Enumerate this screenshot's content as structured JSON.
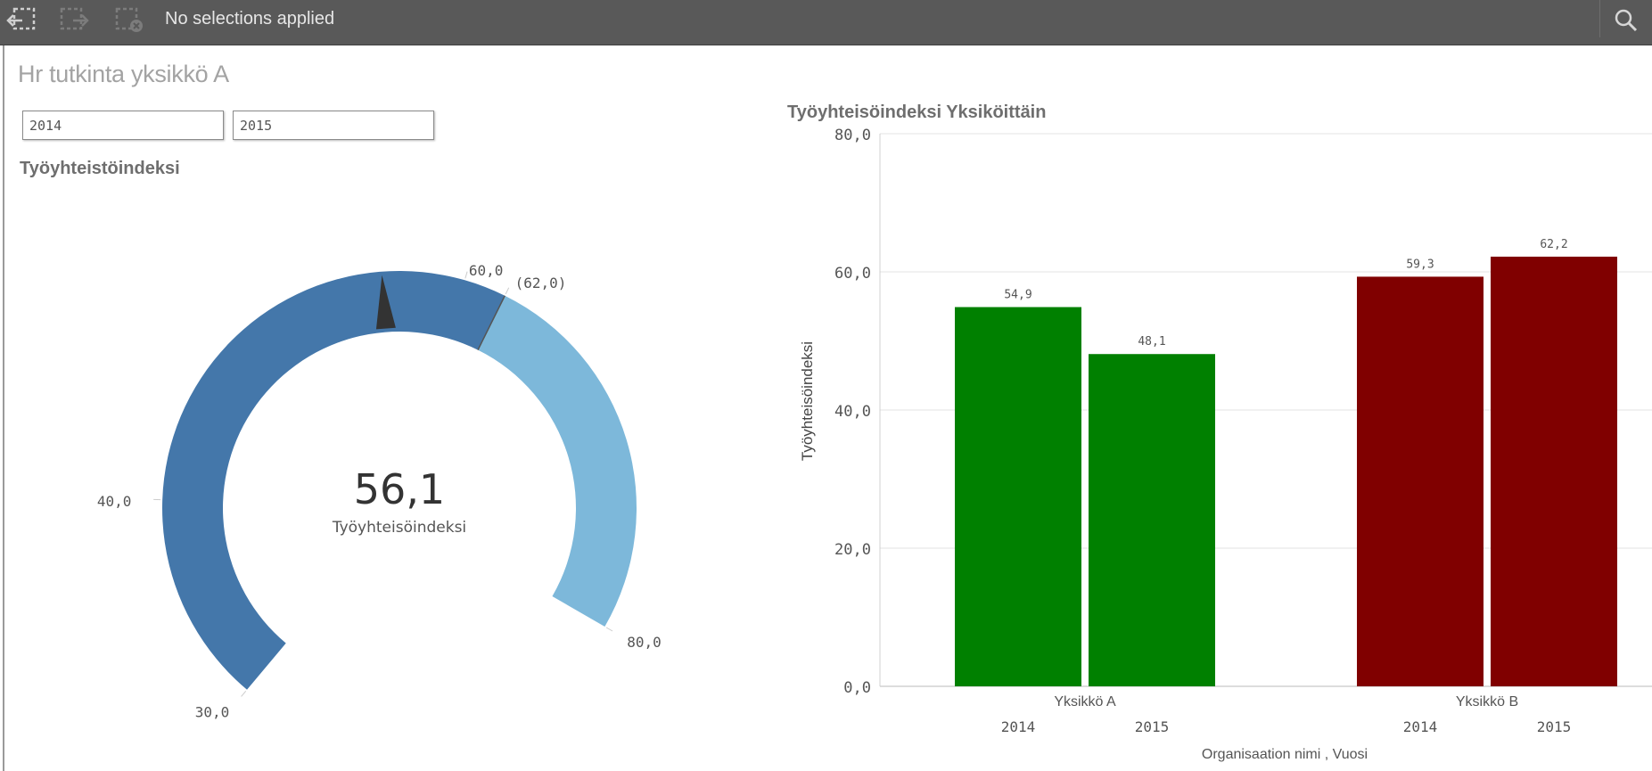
{
  "toolbar": {
    "selection_status": "No selections applied",
    "buttons": [
      "back-step-icon",
      "forward-step-icon",
      "clear-selections-icon",
      "search-icon"
    ]
  },
  "sheet": {
    "title": "Hr tutkinta yksikkö A"
  },
  "filters": [
    {
      "value": "2014"
    },
    {
      "value": "2015"
    }
  ],
  "gauge": {
    "title": "Työyhteistöindeksi",
    "value": 56.1,
    "value_text": "56,1",
    "measure_label": "Työyhteisöindeksi",
    "min": 30,
    "max": 80,
    "segment_boundary": 62,
    "ticks": [
      {
        "value": 30,
        "label": "30,0"
      },
      {
        "value": 40,
        "label": "40,0"
      },
      {
        "value": 60,
        "label": "60,0"
      },
      {
        "value": 62,
        "label": "(62,0)"
      },
      {
        "value": 80,
        "label": "80,0"
      }
    ],
    "colors": {
      "low": "#4477aa",
      "high": "#7db8da",
      "needle": "#333333"
    }
  },
  "chart_data": {
    "type": "bar",
    "title": "Työyhteisöindeksi Yksiköittäin",
    "ylabel": "Työyhteisöindeksi",
    "xlabel": "Organisaation nimi , Vuosi",
    "ylim": [
      0,
      80
    ],
    "yticks": [
      {
        "value": 0,
        "label": "0,0"
      },
      {
        "value": 20,
        "label": "20,0"
      },
      {
        "value": 40,
        "label": "40,0"
      },
      {
        "value": 60,
        "label": "60,0"
      },
      {
        "value": 80,
        "label": "80,0"
      }
    ],
    "groups": [
      {
        "name": "Yksikkö A",
        "color": "#008000",
        "bars": [
          {
            "year": "2014",
            "value": 54.9,
            "label": "54,9"
          },
          {
            "year": "2015",
            "value": 48.1,
            "label": "48,1"
          }
        ]
      },
      {
        "name": "Yksikkö B",
        "color": "#800000",
        "bars": [
          {
            "year": "2014",
            "value": 59.3,
            "label": "59,3"
          },
          {
            "year": "2015",
            "value": 62.2,
            "label": "62,2"
          }
        ]
      }
    ],
    "grid": true
  }
}
